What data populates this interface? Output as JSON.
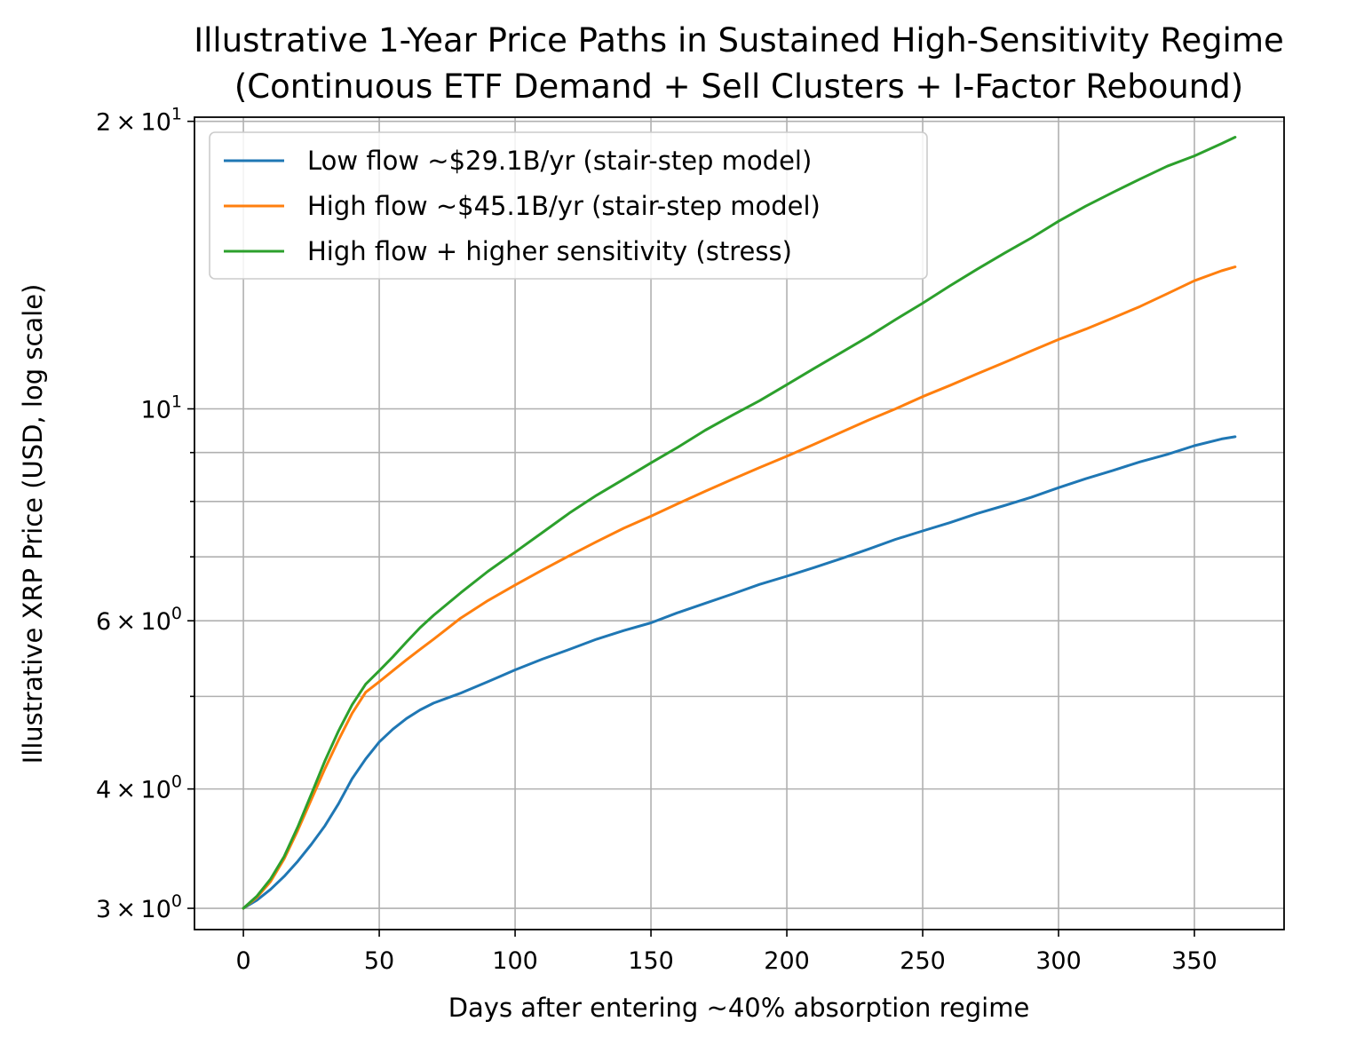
{
  "chart_data": {
    "type": "line",
    "title": "Illustrative 1-Year Price Paths in Sustained High-Sensitivity Regime",
    "subtitle": "(Continuous ETF Demand + Sell Clusters + I-Factor Rebound)",
    "xlabel": "Days after entering ~40% absorption regime",
    "ylabel": "Illustrative XRP Price (USD, log scale)",
    "xlim": [
      -18,
      383
    ],
    "ylim": [
      2.85,
      20.2
    ],
    "yscale": "log",
    "grid": true,
    "legend_position": "top-left",
    "x_ticks": [
      0,
      50,
      100,
      150,
      200,
      250,
      300,
      350
    ],
    "x_tick_labels": [
      "0",
      "50",
      "100",
      "150",
      "200",
      "250",
      "300",
      "350"
    ],
    "y_ticks_major": [
      {
        "value": 3,
        "mantissa": "3",
        "exp": "0"
      },
      {
        "value": 4,
        "mantissa": "4",
        "exp": "0"
      },
      {
        "value": 6,
        "mantissa": "6",
        "exp": "0"
      },
      {
        "value": 10,
        "mantissa": "",
        "exp": "1"
      },
      {
        "value": 20,
        "mantissa": "2",
        "exp": "1"
      }
    ],
    "y_ticks_minor": [
      5,
      7,
      8,
      9
    ],
    "series": [
      {
        "name": "Low flow ~$29.1B/yr (stair-step model)",
        "color": "#1f77b4",
        "x": [
          0,
          5,
          10,
          15,
          20,
          25,
          30,
          35,
          40,
          45,
          50,
          55,
          60,
          65,
          70,
          80,
          90,
          100,
          110,
          120,
          130,
          140,
          150,
          160,
          170,
          180,
          190,
          200,
          210,
          220,
          230,
          240,
          250,
          260,
          270,
          280,
          290,
          300,
          310,
          320,
          330,
          340,
          350,
          360,
          365
        ],
        "y": [
          3.0,
          3.06,
          3.14,
          3.24,
          3.36,
          3.5,
          3.66,
          3.86,
          4.1,
          4.3,
          4.48,
          4.62,
          4.74,
          4.84,
          4.92,
          5.04,
          5.18,
          5.33,
          5.47,
          5.6,
          5.74,
          5.86,
          5.97,
          6.12,
          6.26,
          6.4,
          6.55,
          6.68,
          6.82,
          6.97,
          7.13,
          7.3,
          7.45,
          7.6,
          7.77,
          7.92,
          8.08,
          8.27,
          8.45,
          8.62,
          8.8,
          8.96,
          9.15,
          9.3,
          9.35
        ]
      },
      {
        "name": "High flow ~$45.1B/yr (stair-step model)",
        "color": "#ff7f0e",
        "x": [
          0,
          5,
          10,
          15,
          20,
          25,
          30,
          35,
          40,
          45,
          50,
          55,
          60,
          65,
          70,
          80,
          90,
          100,
          110,
          120,
          130,
          140,
          150,
          160,
          170,
          180,
          190,
          200,
          210,
          220,
          230,
          240,
          250,
          260,
          270,
          280,
          290,
          300,
          310,
          320,
          330,
          340,
          350,
          360,
          365
        ],
        "y": [
          3.0,
          3.08,
          3.2,
          3.38,
          3.62,
          3.9,
          4.2,
          4.5,
          4.8,
          5.05,
          5.18,
          5.32,
          5.46,
          5.6,
          5.74,
          6.04,
          6.3,
          6.54,
          6.78,
          7.02,
          7.26,
          7.5,
          7.72,
          7.96,
          8.2,
          8.44,
          8.68,
          8.92,
          9.18,
          9.45,
          9.73,
          10.0,
          10.3,
          10.58,
          10.88,
          11.18,
          11.5,
          11.82,
          12.12,
          12.45,
          12.8,
          13.2,
          13.62,
          13.95,
          14.08
        ]
      },
      {
        "name": "High flow + higher sensitivity (stress)",
        "color": "#2ca02c",
        "x": [
          0,
          5,
          10,
          15,
          20,
          25,
          30,
          35,
          40,
          45,
          50,
          55,
          60,
          65,
          70,
          80,
          90,
          100,
          110,
          120,
          130,
          140,
          150,
          160,
          170,
          180,
          190,
          200,
          210,
          220,
          230,
          240,
          250,
          260,
          270,
          280,
          290,
          300,
          310,
          320,
          330,
          340,
          350,
          360,
          365
        ],
        "y": [
          3.0,
          3.09,
          3.22,
          3.4,
          3.65,
          3.95,
          4.28,
          4.6,
          4.9,
          5.15,
          5.32,
          5.5,
          5.7,
          5.9,
          6.08,
          6.42,
          6.76,
          7.08,
          7.42,
          7.78,
          8.12,
          8.44,
          8.78,
          9.12,
          9.5,
          9.85,
          10.2,
          10.6,
          11.02,
          11.45,
          11.9,
          12.4,
          12.9,
          13.45,
          14.0,
          14.55,
          15.1,
          15.72,
          16.3,
          16.85,
          17.4,
          17.95,
          18.4,
          18.95,
          19.25
        ]
      }
    ]
  }
}
